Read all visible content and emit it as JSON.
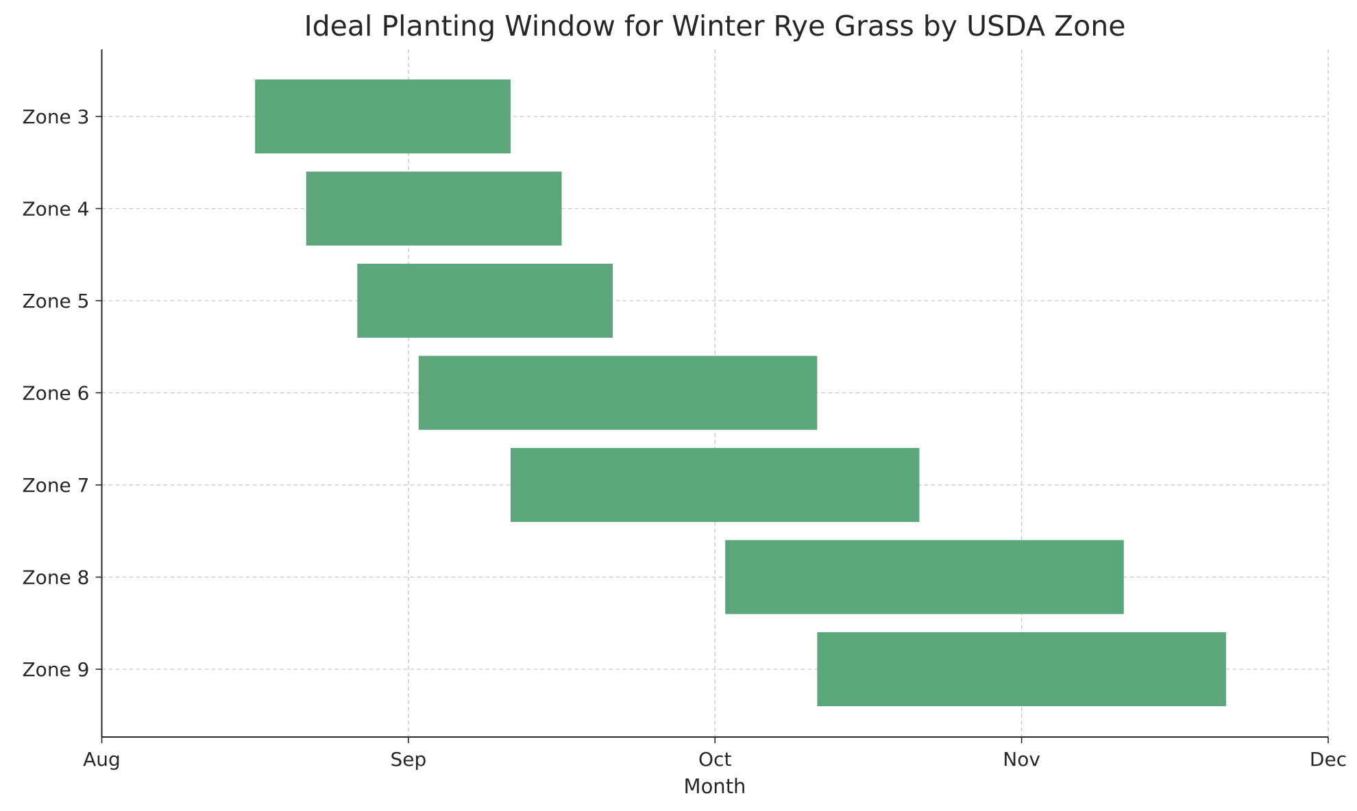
{
  "chart_data": {
    "type": "bar",
    "orientation": "horizontal",
    "title": "Ideal Planting Window for Winter Rye Grass by USDA Zone",
    "xlabel": "Month",
    "ylabel": "",
    "x_unit": "days after Aug 1 (30-day months)",
    "xlim": [
      0,
      120
    ],
    "x_ticks": [
      0,
      30,
      60,
      90,
      120
    ],
    "x_tick_labels": [
      "Aug",
      "Sep",
      "Oct",
      "Nov",
      "Dec"
    ],
    "categories": [
      "Zone 3",
      "Zone 4",
      "Zone 5",
      "Zone 6",
      "Zone 7",
      "Zone 8",
      "Zone 9"
    ],
    "start": [
      15,
      20,
      25,
      31,
      40,
      61,
      70
    ],
    "end": [
      40,
      45,
      50,
      70,
      80,
      100,
      110
    ],
    "grid": true,
    "legend": "none",
    "bar_color": "#5ba67b"
  }
}
